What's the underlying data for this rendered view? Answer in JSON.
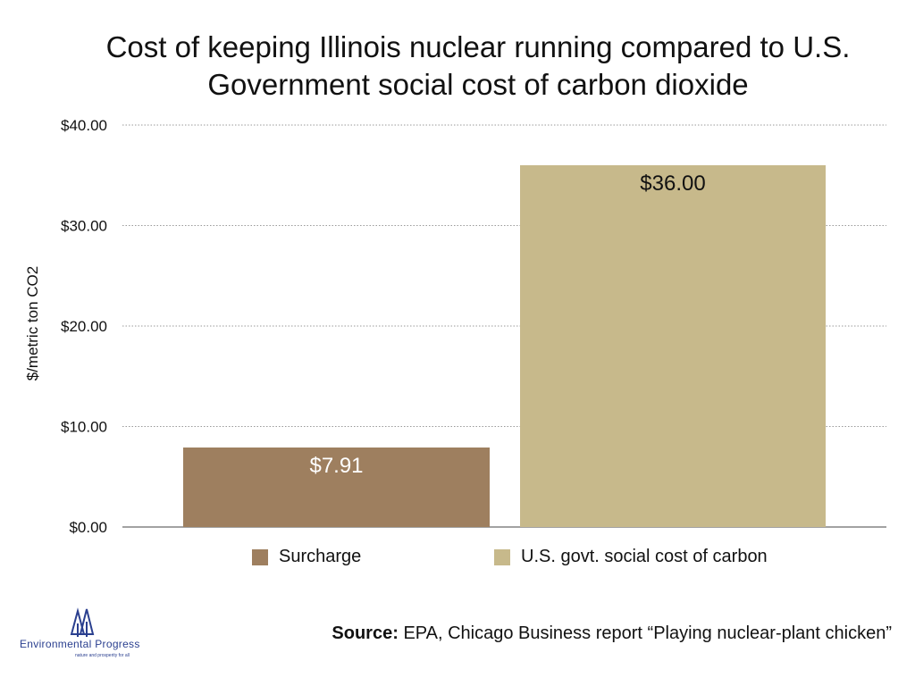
{
  "chart_data": {
    "type": "bar",
    "title": "Cost of keeping Illinois nuclear running compared to U.S. Government social cost of carbon dioxide",
    "ylabel": "$/metric ton CO2",
    "ylim": [
      0,
      40
    ],
    "yticks": [
      {
        "value": 0,
        "label": "$0.00"
      },
      {
        "value": 10,
        "label": "$10.00"
      },
      {
        "value": 20,
        "label": "$20.00"
      },
      {
        "value": 30,
        "label": "$30.00"
      },
      {
        "value": 40,
        "label": "$40.00"
      }
    ],
    "grid": "horizontal dotted",
    "legend_position": "bottom",
    "series": [
      {
        "name": "Surcharge",
        "value": 7.91,
        "label": "$7.91",
        "color": "#9e7f5f",
        "label_color": "#ffffff"
      },
      {
        "name": "U.S. govt. social cost of carbon",
        "value": 36.0,
        "label": "$36.00",
        "color": "#c7b98b",
        "label_color": "#111111"
      }
    ]
  },
  "source": {
    "prefix": "Source:",
    "text": "EPA, Chicago Business report “Playing nuclear-plant chicken”"
  },
  "logo": {
    "name": "Environmental Progress",
    "tagline": "nature and prosperity for all",
    "color": "#2a3f8f"
  }
}
